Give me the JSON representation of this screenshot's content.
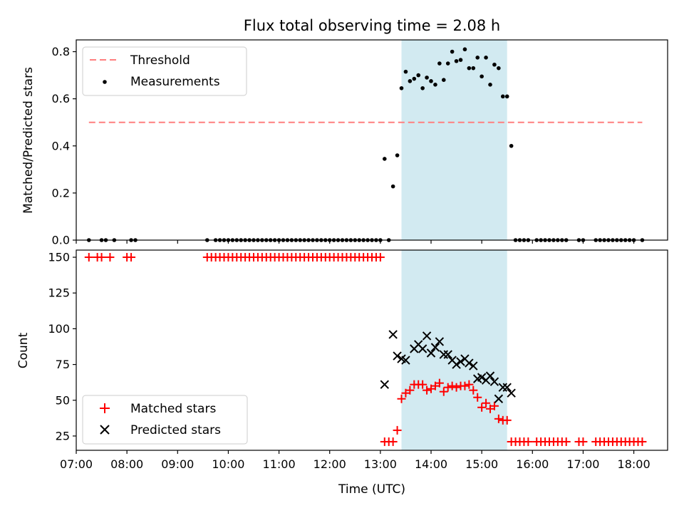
{
  "chart_data": [
    {
      "type": "scatter",
      "title": "Flux total observing time = 2.08 h",
      "ylabel": "Matched/Predicted stars",
      "xlabel": "",
      "xlim": [
        "07:00",
        "18:40"
      ],
      "ylim": [
        0,
        0.85
      ],
      "yticks": [
        "0.0",
        "0.2",
        "0.4",
        "0.6",
        "0.8"
      ],
      "legend_position": "top-left",
      "highlight_span": {
        "start": "13:25",
        "end": "15:30",
        "color": "#add8e6"
      },
      "threshold": {
        "name": "Threshold",
        "y": 0.5,
        "x_start": "07:15",
        "x_end": "18:10",
        "color": "#ff7f7f"
      },
      "series": [
        {
          "name": "Measurements",
          "color": "#000000",
          "x": [
            "07:15",
            "07:30",
            "07:35",
            "07:45",
            "08:05",
            "08:10",
            "09:35",
            "09:45",
            "09:50",
            "09:55",
            "10:00",
            "10:05",
            "10:10",
            "10:15",
            "10:20",
            "10:25",
            "10:30",
            "10:35",
            "10:40",
            "10:45",
            "10:50",
            "10:55",
            "11:00",
            "11:05",
            "11:10",
            "11:15",
            "11:20",
            "11:25",
            "11:30",
            "11:35",
            "11:40",
            "11:45",
            "11:50",
            "11:55",
            "12:00",
            "12:05",
            "12:10",
            "12:15",
            "12:20",
            "12:25",
            "12:30",
            "12:35",
            "12:40",
            "12:45",
            "12:50",
            "12:55",
            "13:00",
            "13:05",
            "13:10",
            "13:15",
            "13:20",
            "13:25",
            "13:30",
            "13:35",
            "13:40",
            "13:45",
            "13:50",
            "13:55",
            "14:00",
            "14:05",
            "14:10",
            "14:15",
            "14:20",
            "14:25",
            "14:30",
            "14:35",
            "14:40",
            "14:45",
            "14:50",
            "14:55",
            "15:00",
            "15:05",
            "15:10",
            "15:15",
            "15:20",
            "15:25",
            "15:30",
            "15:35",
            "15:40",
            "15:45",
            "15:50",
            "15:55",
            "16:05",
            "16:10",
            "16:15",
            "16:20",
            "16:25",
            "16:30",
            "16:35",
            "16:40",
            "16:55",
            "17:00",
            "17:15",
            "17:20",
            "17:25",
            "17:30",
            "17:35",
            "17:40",
            "17:45",
            "17:50",
            "17:55",
            "18:00",
            "18:10"
          ],
          "y": [
            0,
            0,
            0,
            0,
            0,
            0,
            0,
            0,
            0,
            0,
            0,
            0,
            0,
            0,
            0,
            0,
            0,
            0,
            0,
            0,
            0,
            0,
            0,
            0,
            0,
            0,
            0,
            0,
            0,
            0,
            0,
            0,
            0,
            0,
            0,
            0,
            0,
            0,
            0,
            0,
            0,
            0,
            0,
            0,
            0,
            0,
            0,
            0.345,
            0,
            0.228,
            0.36,
            0.645,
            0.715,
            0.675,
            0.685,
            0.7,
            0.645,
            0.69,
            0.675,
            0.66,
            0.75,
            0.68,
            0.75,
            0.8,
            0.76,
            0.765,
            0.81,
            0.73,
            0.73,
            0.775,
            0.695,
            0.775,
            0.66,
            0.745,
            0.73,
            0.61,
            0.61,
            0.4,
            0,
            0,
            0,
            0,
            0,
            0,
            0,
            0,
            0,
            0,
            0,
            0,
            0,
            0,
            0,
            0,
            0,
            0,
            0,
            0,
            0,
            0,
            0,
            0,
            0
          ]
        }
      ]
    },
    {
      "type": "scatter",
      "title": "",
      "ylabel": "Count",
      "xlabel": "Time (UTC)",
      "xlim": [
        "07:00",
        "18:40"
      ],
      "ylim": [
        15,
        155
      ],
      "yticks": [
        "25",
        "50",
        "75",
        "100",
        "125",
        "150"
      ],
      "xticks": [
        "07:00",
        "08:00",
        "09:00",
        "10:00",
        "11:00",
        "12:00",
        "13:00",
        "14:00",
        "15:00",
        "16:00",
        "17:00",
        "18:00"
      ],
      "legend_position": "bottom-left",
      "highlight_span": {
        "start": "13:25",
        "end": "15:30",
        "color": "#add8e6"
      },
      "series": [
        {
          "name": "Matched stars",
          "color": "#ff0000",
          "marker": "plus",
          "x": [
            "07:15",
            "07:25",
            "07:30",
            "07:40",
            "08:00",
            "08:05",
            "09:35",
            "09:40",
            "09:45",
            "09:50",
            "09:55",
            "10:00",
            "10:05",
            "10:10",
            "10:15",
            "10:20",
            "10:25",
            "10:30",
            "10:35",
            "10:40",
            "10:45",
            "10:50",
            "10:55",
            "11:00",
            "11:05",
            "11:10",
            "11:15",
            "11:20",
            "11:25",
            "11:30",
            "11:35",
            "11:40",
            "11:45",
            "11:50",
            "11:55",
            "12:00",
            "12:05",
            "12:10",
            "12:15",
            "12:20",
            "12:25",
            "12:30",
            "12:35",
            "12:40",
            "12:45",
            "12:50",
            "12:55",
            "13:00",
            "13:05",
            "13:10",
            "13:15",
            "13:20",
            "13:25",
            "13:30",
            "13:35",
            "13:40",
            "13:45",
            "13:50",
            "13:55",
            "14:00",
            "14:05",
            "14:10",
            "14:15",
            "14:20",
            "14:25",
            "14:30",
            "14:35",
            "14:40",
            "14:45",
            "14:50",
            "14:55",
            "15:00",
            "15:05",
            "15:10",
            "15:15",
            "15:20",
            "15:25",
            "15:30",
            "15:35",
            "15:40",
            "15:45",
            "15:50",
            "15:55",
            "16:05",
            "16:10",
            "16:15",
            "16:20",
            "16:25",
            "16:30",
            "16:35",
            "16:40",
            "16:55",
            "17:00",
            "17:15",
            "17:20",
            "17:25",
            "17:30",
            "17:35",
            "17:40",
            "17:45",
            "17:50",
            "17:55",
            "18:00",
            "18:05",
            "18:10"
          ],
          "y": [
            150,
            150,
            150,
            150,
            150,
            150,
            150,
            150,
            150,
            150,
            150,
            150,
            150,
            150,
            150,
            150,
            150,
            150,
            150,
            150,
            150,
            150,
            150,
            150,
            150,
            150,
            150,
            150,
            150,
            150,
            150,
            150,
            150,
            150,
            150,
            150,
            150,
            150,
            150,
            150,
            150,
            150,
            150,
            150,
            150,
            150,
            150,
            150,
            21,
            21,
            21,
            29,
            51,
            55,
            57,
            61,
            61,
            61,
            57,
            58,
            60,
            62,
            56,
            59,
            60,
            59,
            60,
            60,
            61,
            57,
            52,
            45,
            48,
            44,
            46,
            37,
            36,
            36,
            21,
            21,
            21,
            21,
            21,
            21,
            21,
            21,
            21,
            21,
            21,
            21,
            21,
            21,
            21,
            21,
            21,
            21,
            21,
            21,
            21,
            21,
            21,
            21,
            21,
            21,
            21
          ]
        },
        {
          "name": "Predicted stars",
          "color": "#000000",
          "marker": "x",
          "x": [
            "13:05",
            "13:15",
            "13:20",
            "13:25",
            "13:30",
            "13:40",
            "13:45",
            "13:50",
            "13:55",
            "14:00",
            "14:05",
            "14:10",
            "14:15",
            "14:20",
            "14:25",
            "14:30",
            "14:35",
            "14:40",
            "14:45",
            "14:50",
            "14:55",
            "15:00",
            "15:05",
            "15:10",
            "15:15",
            "15:20",
            "15:25",
            "15:30",
            "15:35"
          ],
          "y": [
            61,
            96,
            81,
            79,
            78,
            86,
            89,
            86,
            95,
            83,
            87,
            91,
            82,
            82,
            78,
            75,
            77,
            79,
            76,
            74,
            65,
            66,
            64,
            67,
            63,
            51,
            59,
            59,
            55
          ]
        }
      ]
    }
  ]
}
